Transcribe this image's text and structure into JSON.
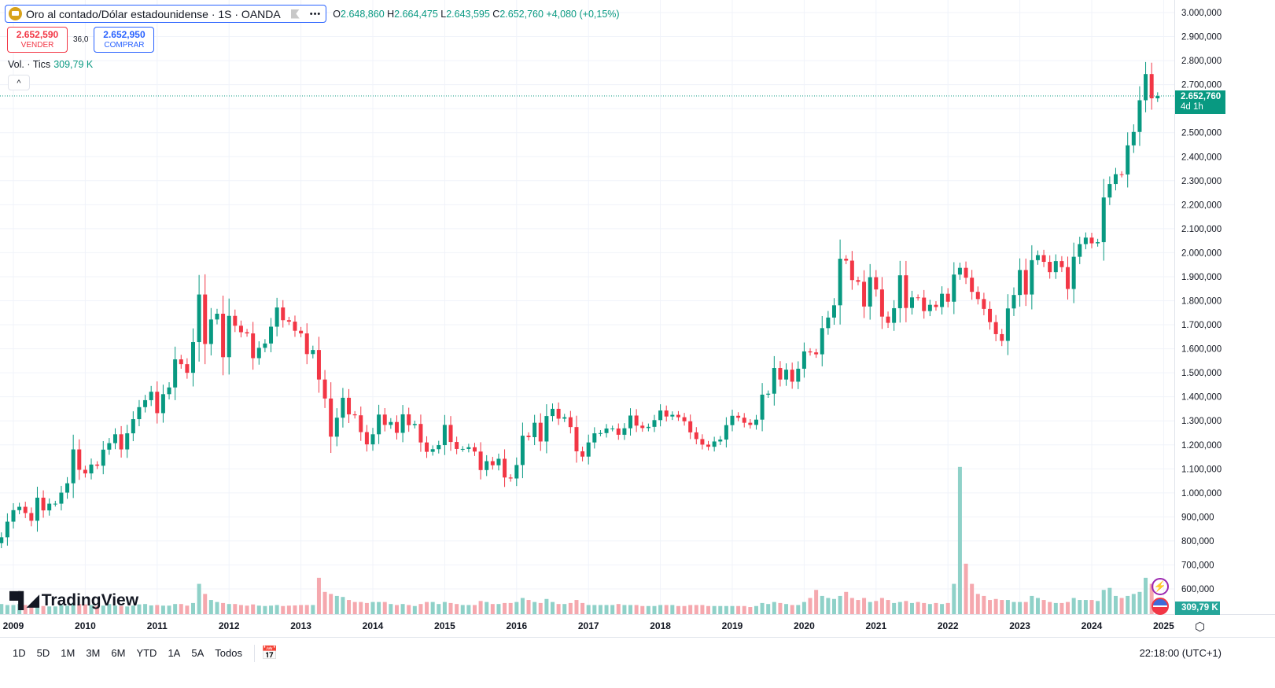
{
  "header": {
    "symbol": "Oro al contado/Dólar estadounidense · 1S · OANDA",
    "more": "•••",
    "o_label": "O",
    "o": "2.648,860",
    "h_label": "H",
    "h": "2.664,475",
    "l_label": "L",
    "l": "2.643,595",
    "c_label": "C",
    "c": "2.652,760",
    "change": "+4,080 (+0,15%)"
  },
  "trade": {
    "sell_price": "2.652,590",
    "sell_label": "VENDER",
    "spread": "36,0",
    "buy_price": "2.652,950",
    "buy_label": "COMPRAR"
  },
  "volume_legend": {
    "label": "Vol. · Tics",
    "value": "309,79 K"
  },
  "collapse": "^",
  "logo": "TradingView",
  "price_tag": {
    "price": "2.652,760",
    "countdown": "4d 1h"
  },
  "volume_tag": "309,79 K",
  "bottom": {
    "ranges": [
      "1D",
      "5D",
      "1M",
      "3M",
      "6M",
      "YTD",
      "1A",
      "5A",
      "Todos"
    ],
    "time": "22:18:00 (UTC+1)"
  },
  "colors": {
    "up": "#089981",
    "down": "#f23645",
    "vol_up": "#8fd1c8",
    "vol_down": "#f5a8ae",
    "grid": "#f0f3fa"
  },
  "chart_data": {
    "type": "candlestick",
    "interval": "1S",
    "start": "2008-11",
    "grid": true,
    "y_ticks": [
      3000,
      2900,
      2800,
      2700,
      2600,
      2500,
      2400,
      2300,
      2200,
      2100,
      2000,
      1900,
      1800,
      1700,
      1600,
      1500,
      1400,
      1300,
      1200,
      1100,
      1000,
      900,
      800,
      700,
      600
    ],
    "y_tick_labels": [
      "3.000,000",
      "2.900,000",
      "2.800,000",
      "2.700,000",
      "",
      "2.500,000",
      "2.400,000",
      "2.300,000",
      "2.200,000",
      "2.100,000",
      "2.000,000",
      "1.900,000",
      "1.800,000",
      "1.700,000",
      "1.600,000",
      "1.500,000",
      "1.400,000",
      "1.300,000",
      "1.200,000",
      "1.100,000",
      "1.000,000",
      "900,000",
      "800,000",
      "700,000",
      "600,000"
    ],
    "x_ticks": [
      "2009",
      "2010",
      "2011",
      "2012",
      "2013",
      "2014",
      "2015",
      "2016",
      "2017",
      "2018",
      "2019",
      "2020",
      "2021",
      "2022",
      "2023",
      "2024",
      "2025"
    ],
    "last_price": 2652.76,
    "monthly_close": [
      815,
      880,
      928,
      942,
      916,
      884,
      980,
      927,
      955,
      955,
      1001,
      1040,
      1181,
      1096,
      1081,
      1118,
      1113,
      1180,
      1207,
      1244,
      1181,
      1248,
      1307,
      1357,
      1386,
      1421,
      1332,
      1411,
      1439,
      1556,
      1536,
      1500,
      1628,
      1826,
      1620,
      1722,
      1746,
      1565,
      1737,
      1696,
      1669,
      1664,
      1561,
      1604,
      1622,
      1692,
      1772,
      1719,
      1713,
      1675,
      1664,
      1578,
      1595,
      1472,
      1393,
      1234,
      1313,
      1396,
      1327,
      1323,
      1253,
      1202,
      1244,
      1326,
      1283,
      1295,
      1250,
      1327,
      1282,
      1287,
      1210,
      1171,
      1182,
      1199,
      1283,
      1212,
      1183,
      1183,
      1190,
      1172,
      1095,
      1132,
      1115,
      1142,
      1064,
      1060,
      1116,
      1238,
      1232,
      1292,
      1214,
      1320,
      1350,
      1309,
      1315,
      1274,
      1173,
      1151,
      1210,
      1248,
      1249,
      1268,
      1268,
      1242,
      1269,
      1322,
      1280,
      1270,
      1275,
      1303,
      1343,
      1318,
      1325,
      1315,
      1298,
      1252,
      1224,
      1201,
      1192,
      1214,
      1222,
      1282,
      1321,
      1313,
      1292,
      1283,
      1305,
      1409,
      1413,
      1520,
      1472,
      1513,
      1463,
      1517,
      1589,
      1585,
      1577,
      1686,
      1730,
      1781,
      1975,
      1967,
      1886,
      1879,
      1776,
      1898,
      1847,
      1734,
      1708,
      1769,
      1906,
      1770,
      1814,
      1813,
      1757,
      1783,
      1774,
      1829,
      1796,
      1909,
      1937,
      1896,
      1837,
      1807,
      1766,
      1711,
      1661,
      1633,
      1768,
      1824,
      1928,
      1826,
      1969,
      1990,
      1962,
      1919,
      1965,
      1940,
      1849,
      1983,
      2036,
      2063,
      2039,
      2044,
      2230,
      2286,
      2327,
      2326,
      2447,
      2503,
      2635,
      2744,
      2643,
      2652.76
    ],
    "volume_k": [
      500,
      450,
      450,
      500,
      450,
      400,
      400,
      400,
      380,
      380,
      450,
      420,
      550,
      500,
      480,
      450,
      400,
      420,
      500,
      420,
      400,
      380,
      420,
      480,
      500,
      430,
      450,
      420,
      420,
      500,
      500,
      420,
      550,
      1500,
      1000,
      700,
      600,
      550,
      500,
      500,
      450,
      420,
      480,
      420,
      400,
      420,
      450,
      400,
      420,
      430,
      450,
      450,
      450,
      1800,
      1100,
      1000,
      900,
      850,
      700,
      600,
      600,
      550,
      600,
      600,
      600,
      500,
      450,
      500,
      450,
      400,
      500,
      600,
      600,
      500,
      600,
      550,
      500,
      450,
      450,
      450,
      650,
      600,
      500,
      500,
      550,
      550,
      600,
      800,
      700,
      600,
      550,
      750,
      600,
      500,
      500,
      550,
      700,
      550,
      450,
      450,
      450,
      450,
      450,
      500,
      450,
      450,
      450,
      400,
      400,
      400,
      450,
      450,
      450,
      400,
      400,
      450,
      450,
      450,
      400,
      400,
      400,
      400,
      400,
      400,
      400,
      350,
      400,
      550,
      500,
      600,
      550,
      500,
      450,
      450,
      600,
      800,
      1200,
      900,
      800,
      750,
      900,
      1100,
      800,
      700,
      800,
      600,
      650,
      800,
      700,
      550,
      600,
      650,
      550,
      600,
      550,
      500,
      550,
      500,
      550,
      1500,
      7300,
      2500,
      1500,
      1000,
      900,
      700,
      750,
      700,
      700,
      600,
      600,
      600,
      900,
      800,
      700,
      600,
      550,
      550,
      600,
      800,
      700,
      700,
      700,
      650,
      1200,
      1300,
      900,
      800,
      900,
      1000,
      1100,
      1800,
      1500,
      310
    ]
  }
}
